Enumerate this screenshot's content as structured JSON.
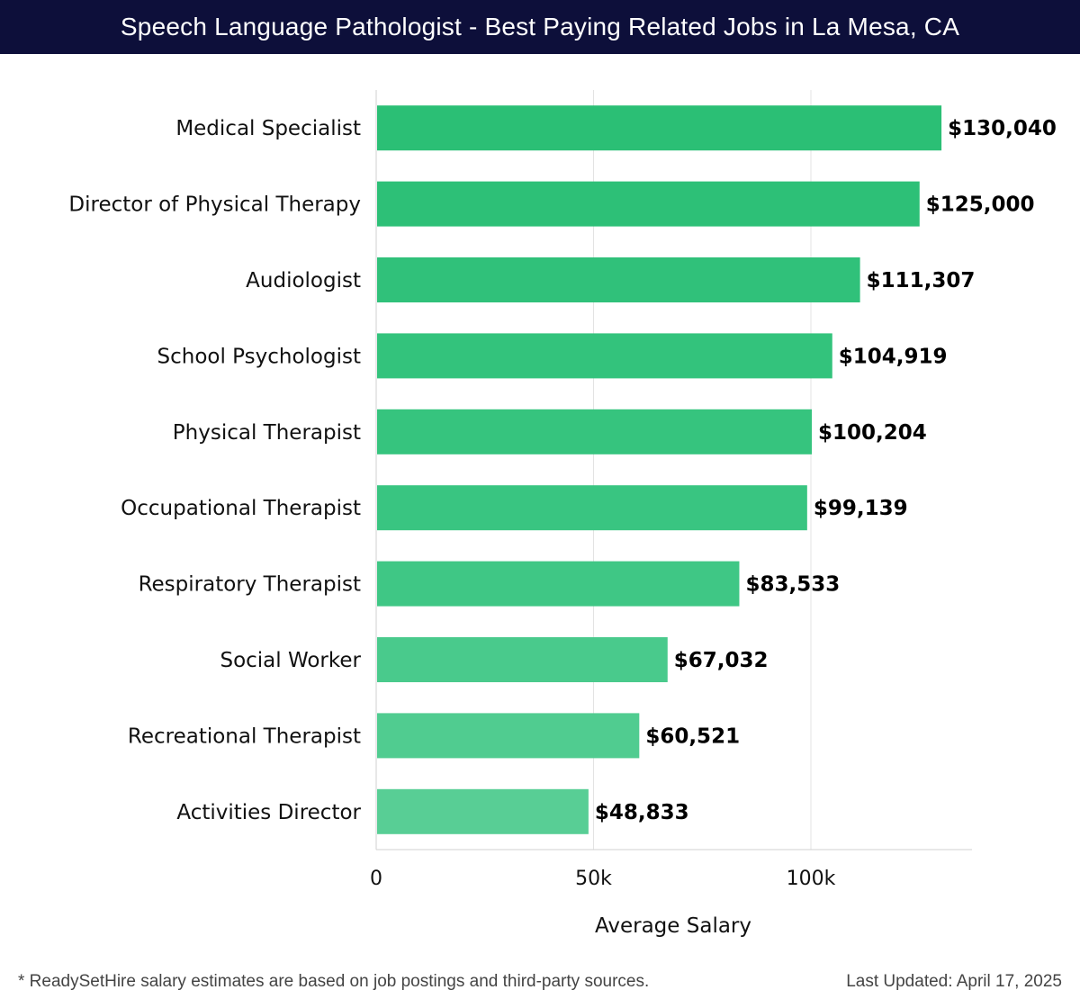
{
  "header": {
    "title": "Speech Language Pathologist - Best Paying Related Jobs in La Mesa, CA"
  },
  "chart_data": {
    "type": "bar",
    "orientation": "horizontal",
    "categories": [
      "Medical Specialist",
      "Director of Physical Therapy",
      "Audiologist",
      "School Psychologist",
      "Physical Therapist",
      "Occupational Therapist",
      "Respiratory Therapist",
      "Social Worker",
      "Recreational Therapist",
      "Activities Director"
    ],
    "values": [
      130040,
      125000,
      111307,
      104919,
      100204,
      99139,
      83533,
      67032,
      60521,
      48833
    ],
    "value_labels": [
      "$130,040",
      "$125,000",
      "$111,307",
      "$104,919",
      "$100,204",
      "$99,139",
      "$83,533",
      "$67,032",
      "$60,521",
      "$48,833"
    ],
    "xlabel": "Average Salary",
    "ylabel": "",
    "xlim": [
      0,
      137000
    ],
    "xticks": [
      0,
      50000,
      100000
    ],
    "xtick_labels": [
      "0",
      "50k",
      "100k"
    ],
    "grid": "vertical",
    "bar_colors": [
      "#2bbf75",
      "#2dc077",
      "#30c17a",
      "#33c37c",
      "#36c47e",
      "#39c581",
      "#3fc785",
      "#49ca8c",
      "#50cc90",
      "#58ce95"
    ]
  },
  "footer": {
    "note": "* ReadySetHire salary estimates are based on job postings and third-party sources.",
    "updated": "Last Updated: April 17, 2025"
  }
}
